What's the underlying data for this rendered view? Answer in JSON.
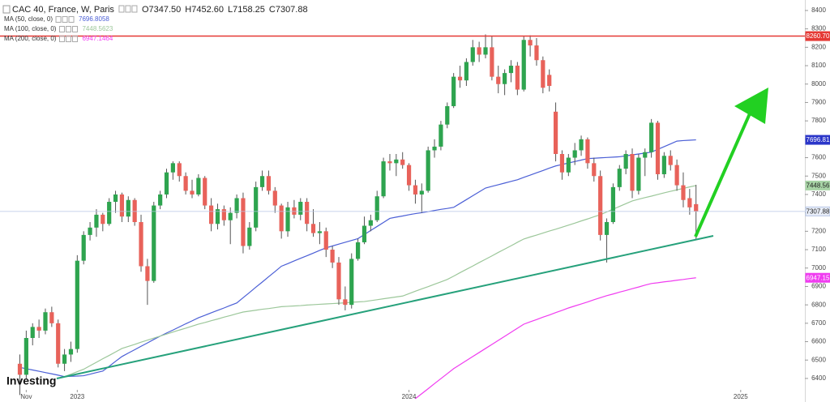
{
  "chart_data": {
    "type": "candlestick",
    "title": "CAC 40, France, W, Paris",
    "ohlc_legend": [
      {
        "name": "O",
        "label": "7347.50"
      },
      {
        "name": "H",
        "label": "7452.60"
      },
      {
        "name": "L",
        "label": "7158.25"
      },
      {
        "name": "C",
        "label": "7307.88"
      }
    ],
    "categories": [
      null,
      "Nov",
      null,
      null,
      null,
      null,
      null,
      null,
      null,
      "2023",
      null,
      null,
      null,
      null,
      null,
      null,
      null,
      null,
      null,
      null,
      null,
      null,
      null,
      null,
      null,
      null,
      null,
      null,
      null,
      null,
      null,
      null,
      null,
      null,
      null,
      null,
      null,
      null,
      null,
      null,
      null,
      null,
      null,
      null,
      null,
      null,
      null,
      null,
      null,
      null,
      null,
      null,
      null,
      null,
      null,
      null,
      null,
      null,
      null,
      null,
      null,
      "2024",
      null,
      null,
      null,
      null,
      null,
      null,
      null,
      null,
      null,
      null,
      null,
      null,
      null,
      null,
      null,
      null,
      null,
      null,
      null,
      null,
      null,
      null,
      null,
      null,
      null,
      null,
      null,
      null,
      null,
      null,
      null,
      null,
      null,
      null,
      null,
      null,
      null,
      null,
      null,
      null,
      null,
      null,
      null,
      null,
      null,
      null,
      null,
      null,
      null,
      null,
      null,
      "2025"
    ],
    "open": [
      6480,
      6420,
      6620,
      6680,
      6660,
      6760,
      6700,
      6480,
      6530,
      6560,
      7040,
      7180,
      7220,
      7290,
      7240,
      7360,
      7400,
      7280,
      7370,
      7250,
      7010,
      6930,
      7340,
      7400,
      7520,
      7570,
      7500,
      7420,
      7400,
      7490,
      7340,
      7240,
      7320,
      7260,
      7300,
      7380,
      7120,
      7220,
      7440,
      7500,
      7420,
      7340,
      7200,
      7330,
      7290,
      7360,
      7240,
      7190,
      7200,
      7100,
      7030,
      6830,
      6800,
      7050,
      7140,
      7230,
      7260,
      7390,
      7580,
      7570,
      7590,
      7560,
      7450,
      7400,
      7420,
      7640,
      7660,
      7780,
      7880,
      8040,
      8020,
      8120,
      8200,
      8160,
      8200,
      8040,
      8000,
      8060,
      8100,
      7970,
      8240,
      8210,
      8130,
      8050,
      7850,
      7620,
      7520,
      7600,
      7640,
      7700,
      7570,
      7500,
      7180,
      7250,
      7440,
      7540,
      7620,
      7420,
      7600,
      7630,
      7790,
      7510,
      7610,
      7560,
      7450,
      7380,
      7347.5,
      null,
      null,
      null,
      null,
      null,
      null,
      null
    ],
    "high": [
      6530,
      6660,
      6700,
      6720,
      6780,
      6790,
      6720,
      6560,
      6600,
      7070,
      7200,
      7250,
      7320,
      7300,
      7380,
      7420,
      7410,
      7390,
      7380,
      7290,
      7050,
      7360,
      7420,
      7540,
      7580,
      7580,
      7520,
      7480,
      7510,
      7500,
      7380,
      7350,
      7340,
      7330,
      7400,
      7410,
      7250,
      7470,
      7530,
      7530,
      7440,
      7350,
      7360,
      7370,
      7380,
      7380,
      7320,
      7250,
      7220,
      7120,
      7060,
      6900,
      7080,
      7160,
      7280,
      7290,
      7420,
      7600,
      7620,
      7620,
      7630,
      7570,
      7480,
      7460,
      7660,
      7700,
      7800,
      7900,
      8060,
      8100,
      8140,
      8240,
      8230,
      8270,
      8260,
      8100,
      8080,
      8130,
      8120,
      8260,
      8265,
      8250,
      8150,
      8080,
      7900,
      7640,
      7620,
      7680,
      7720,
      7710,
      7600,
      7530,
      7270,
      7460,
      7560,
      7640,
      7650,
      7620,
      7650,
      7810,
      7800,
      7630,
      7640,
      7590,
      7520,
      7430,
      7452.6,
      null,
      null,
      null,
      null,
      null,
      null,
      null
    ],
    "low": [
      6310,
      6400,
      6580,
      6620,
      6640,
      6680,
      6460,
      6440,
      6490,
      6540,
      7020,
      7150,
      7170,
      7200,
      7230,
      7300,
      7250,
      7250,
      7230,
      6980,
      6800,
      6920,
      7320,
      7380,
      7480,
      7470,
      7400,
      7380,
      7390,
      7320,
      7200,
      7210,
      7230,
      7130,
      7270,
      7080,
      7100,
      7200,
      7420,
      7400,
      7300,
      7160,
      7170,
      7270,
      7260,
      7200,
      7170,
      7130,
      7060,
      7000,
      6800,
      6770,
      6780,
      7040,
      7130,
      7200,
      7250,
      7380,
      7530,
      7500,
      7540,
      7420,
      7350,
      7300,
      7410,
      7600,
      7640,
      7760,
      7870,
      7980,
      7990,
      8100,
      8120,
      8140,
      8020,
      7950,
      7940,
      8010,
      7940,
      7960,
      8150,
      8100,
      7950,
      7960,
      7580,
      7480,
      7500,
      7560,
      7610,
      7540,
      7470,
      7150,
      7030,
      7240,
      7420,
      7510,
      7380,
      7400,
      7500,
      7600,
      7480,
      7490,
      7530,
      7420,
      7330,
      7290,
      7158.25,
      null,
      null,
      null,
      null,
      null,
      null,
      null
    ],
    "close": [
      6420,
      6620,
      6680,
      6660,
      6760,
      6700,
      6480,
      6530,
      6560,
      7040,
      7180,
      7220,
      7290,
      7240,
      7360,
      7400,
      7280,
      7370,
      7250,
      7010,
      6930,
      7340,
      7400,
      7520,
      7570,
      7500,
      7420,
      7400,
      7490,
      7340,
      7240,
      7320,
      7260,
      7300,
      7380,
      7120,
      7220,
      7440,
      7500,
      7420,
      7340,
      7200,
      7330,
      7290,
      7360,
      7240,
      7190,
      7200,
      7100,
      7030,
      6830,
      6800,
      7050,
      7140,
      7230,
      7260,
      7390,
      7580,
      7570,
      7590,
      7560,
      7450,
      7400,
      7420,
      7640,
      7660,
      7780,
      7880,
      8040,
      8020,
      8120,
      8200,
      8160,
      8200,
      8040,
      8000,
      8060,
      8100,
      7970,
      8240,
      8210,
      8130,
      7980,
      7990,
      7620,
      7520,
      7600,
      7640,
      7700,
      7570,
      7500,
      7180,
      7250,
      7440,
      7540,
      7620,
      7420,
      7600,
      7630,
      7790,
      7510,
      7610,
      7560,
      7450,
      7370,
      7330,
      7307.88,
      null,
      null,
      null,
      null,
      null,
      null,
      null
    ],
    "up_color": "#2ea44f",
    "down_color": "#e8625a",
    "wick_color": "#555555",
    "series": [
      {
        "name": "MA (50, close, 0)",
        "type": "line",
        "color": "#4b5fd6",
        "values": [
          6460,
          6453,
          6446,
          6439,
          6432,
          6425,
          6418,
          6410,
          6412,
          6413,
          6415,
          6423,
          6432,
          6440,
          6466,
          6493,
          6519,
          6538,
          6556,
          6575,
          6593,
          6612,
          6630,
          6647,
          6663,
          6680,
          6697,
          6713,
          6730,
          6743,
          6757,
          6770,
          6783,
          6797,
          6810,
          6839,
          6867,
          6896,
          6924,
          6953,
          6981,
          7010,
          7024,
          7039,
          7053,
          7067,
          7081,
          7096,
          7110,
          7120,
          7130,
          7140,
          7150,
          7160,
          7182,
          7204,
          7226,
          7248,
          7270,
          7277,
          7283,
          7290,
          7296,
          7301,
          7307,
          7313,
          7319,
          7324,
          7330,
          7351,
          7372,
          7393,
          7414,
          7435,
          7444,
          7453,
          7462,
          7471,
          7480,
          7493,
          7505,
          7518,
          7530,
          7543,
          7555,
          7563,
          7571,
          7579,
          7587,
          7595,
          7597,
          7599,
          7601,
          7603,
          7605,
          7610,
          7615,
          7620,
          7625,
          7630,
          7645,
          7660,
          7675,
          7690,
          7693,
          7695,
          7696.8058,
          null,
          null,
          null,
          null,
          null,
          null,
          null
        ]
      },
      {
        "name": "MA (100, close, 0)",
        "type": "line",
        "color": "#9cc79a",
        "values": [
          null,
          null,
          null,
          null,
          null,
          null,
          null,
          6410,
          6423,
          6437,
          6450,
          6469,
          6488,
          6507,
          6525,
          6544,
          6563,
          6574,
          6585,
          6597,
          6608,
          6619,
          6630,
          6641,
          6652,
          6663,
          6673,
          6684,
          6695,
          6704,
          6714,
          6723,
          6733,
          6742,
          6752,
          6761,
          6766,
          6771,
          6776,
          6780,
          6785,
          6790,
          6792,
          6794,
          6796,
          6799,
          6801,
          6803,
          6805,
          6807,
          6809,
          6811,
          6814,
          6816,
          6818,
          6823,
          6828,
          6833,
          6838,
          6843,
          6848,
          6861,
          6874,
          6887,
          6899,
          6912,
          6925,
          6938,
          6956,
          6975,
          6993,
          7011,
          7030,
          7048,
          7066,
          7085,
          7103,
          7121,
          7140,
          7158,
          7169,
          7179,
          7190,
          7201,
          7211,
          7222,
          7233,
          7244,
          7256,
          7267,
          7279,
          7290,
          7305,
          7320,
          7335,
          7350,
          7365,
          7374,
          7383,
          7391,
          7400,
          7409,
          7417,
          7425,
          7433,
          7441,
          7448.5623,
          null,
          null,
          null,
          null,
          null,
          null,
          null
        ]
      },
      {
        "name": "MA (200, close, 0)",
        "type": "line",
        "color": "#f03cf0",
        "values": [
          null,
          null,
          null,
          null,
          null,
          null,
          null,
          null,
          null,
          null,
          null,
          null,
          null,
          null,
          null,
          null,
          null,
          null,
          null,
          null,
          null,
          null,
          null,
          null,
          null,
          null,
          null,
          null,
          null,
          null,
          null,
          null,
          null,
          null,
          null,
          null,
          null,
          null,
          null,
          null,
          null,
          null,
          null,
          null,
          null,
          null,
          null,
          null,
          null,
          null,
          null,
          null,
          null,
          null,
          null,
          null,
          null,
          null,
          null,
          null,
          null,
          null,
          6290,
          6317,
          6344,
          6372,
          6399,
          6426,
          6453,
          6475,
          6497,
          6519,
          6541,
          6563,
          6585,
          6607,
          6629,
          6651,
          6673,
          6695,
          6708,
          6720,
          6733,
          6745,
          6758,
          6770,
          6783,
          6794,
          6805,
          6816,
          6828,
          6839,
          6850,
          6859,
          6869,
          6878,
          6888,
          6897,
          6907,
          6916,
          6920,
          6925,
          6929,
          6934,
          6938,
          6943,
          6947.1464,
          null,
          null,
          null,
          null,
          null,
          null,
          null
        ]
      }
    ],
    "ylim": [
      6272,
      8457
    ],
    "yticks": [
      6400,
      6500,
      6600,
      6700,
      6800,
      6900,
      7000,
      7100,
      7200,
      7300,
      7400,
      7500,
      7600,
      7700,
      7800,
      7900,
      8000,
      8100,
      8200,
      8300,
      8400
    ],
    "grid": false,
    "price_markers": [
      {
        "value": 8260.7,
        "label": "8260.70",
        "color": "#e53935",
        "text_color": "#ffffff",
        "line": true,
        "line_color": "#e53935"
      },
      {
        "value": 7696.81,
        "color": "#2b36c9",
        "text_color": "#ffffff"
      },
      {
        "value": 7448.56,
        "color": "#a8d4a6",
        "text_color": "#222222"
      },
      {
        "value": 7307.88,
        "color": "#e9eef8",
        "text_color": "#222222",
        "line": true,
        "line_color": "#b7c6e6"
      },
      {
        "value": 6947.15,
        "color": "#f03cf0",
        "text_color": "#ffffff"
      }
    ]
  },
  "logo": "Investing"
}
